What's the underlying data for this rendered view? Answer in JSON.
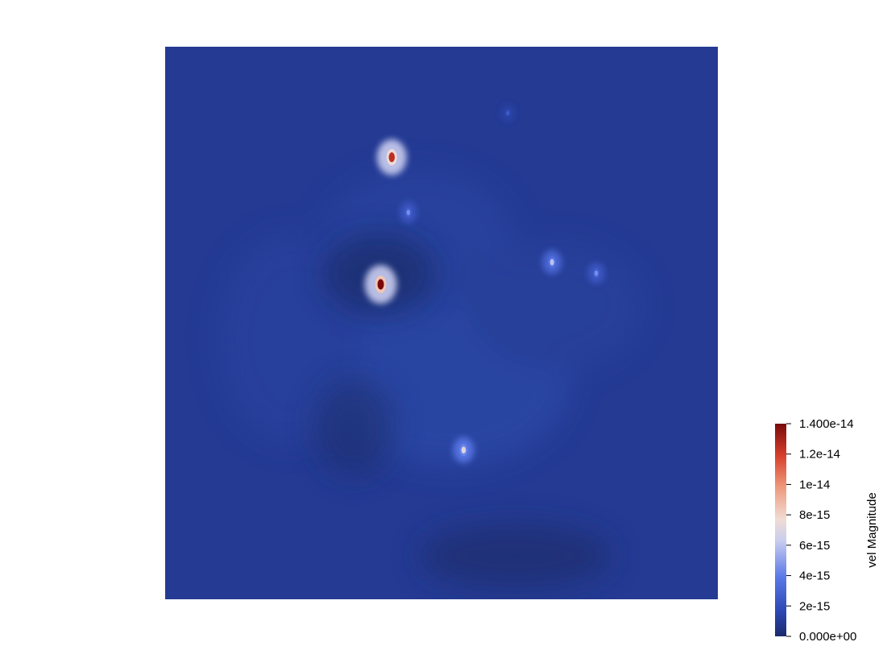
{
  "chart_data": {
    "type": "heatmap",
    "title": "",
    "field": "vel Magnitude",
    "range": [
      0,
      1.4e-14
    ],
    "colormap": {
      "name": "Cool to Warm (Extended)",
      "stops": [
        {
          "pos": 0.0,
          "color": "#1a2a6c"
        },
        {
          "pos": 0.12,
          "color": "#2c48b4"
        },
        {
          "pos": 0.28,
          "color": "#5b79e8"
        },
        {
          "pos": 0.45,
          "color": "#c9cdef"
        },
        {
          "pos": 0.55,
          "color": "#f1dcd3"
        },
        {
          "pos": 0.7,
          "color": "#ee9a7e"
        },
        {
          "pos": 0.85,
          "color": "#d73f2c"
        },
        {
          "pos": 1.0,
          "color": "#7a0a0a"
        }
      ]
    },
    "background_level": 9e-16,
    "hotspots": [
      {
        "x": 0.39,
        "y": 0.43,
        "value": 1.4e-14
      },
      {
        "x": 0.41,
        "y": 0.2,
        "value": 1.25e-14
      },
      {
        "x": 0.54,
        "y": 0.73,
        "value": 7e-15
      },
      {
        "x": 0.7,
        "y": 0.39,
        "value": 6e-15
      },
      {
        "x": 0.62,
        "y": 0.12,
        "value": 2.6e-15
      },
      {
        "x": 0.78,
        "y": 0.41,
        "value": 4.5e-15
      },
      {
        "x": 0.44,
        "y": 0.3,
        "value": 4.5e-15
      }
    ],
    "colorbar": {
      "title": "vel Magnitude",
      "ticks": [
        {
          "value": 1.4e-14,
          "label": "1.400e-14"
        },
        {
          "value": 1.2e-14,
          "label": "1.2e-14"
        },
        {
          "value": 1e-14,
          "label": "1e-14"
        },
        {
          "value": 8e-15,
          "label": "8e-15"
        },
        {
          "value": 6e-15,
          "label": "6e-15"
        },
        {
          "value": 4e-15,
          "label": "4e-15"
        },
        {
          "value": 2e-15,
          "label": "2e-15"
        },
        {
          "value": 0.0,
          "label": "0.000e+00"
        }
      ]
    }
  }
}
